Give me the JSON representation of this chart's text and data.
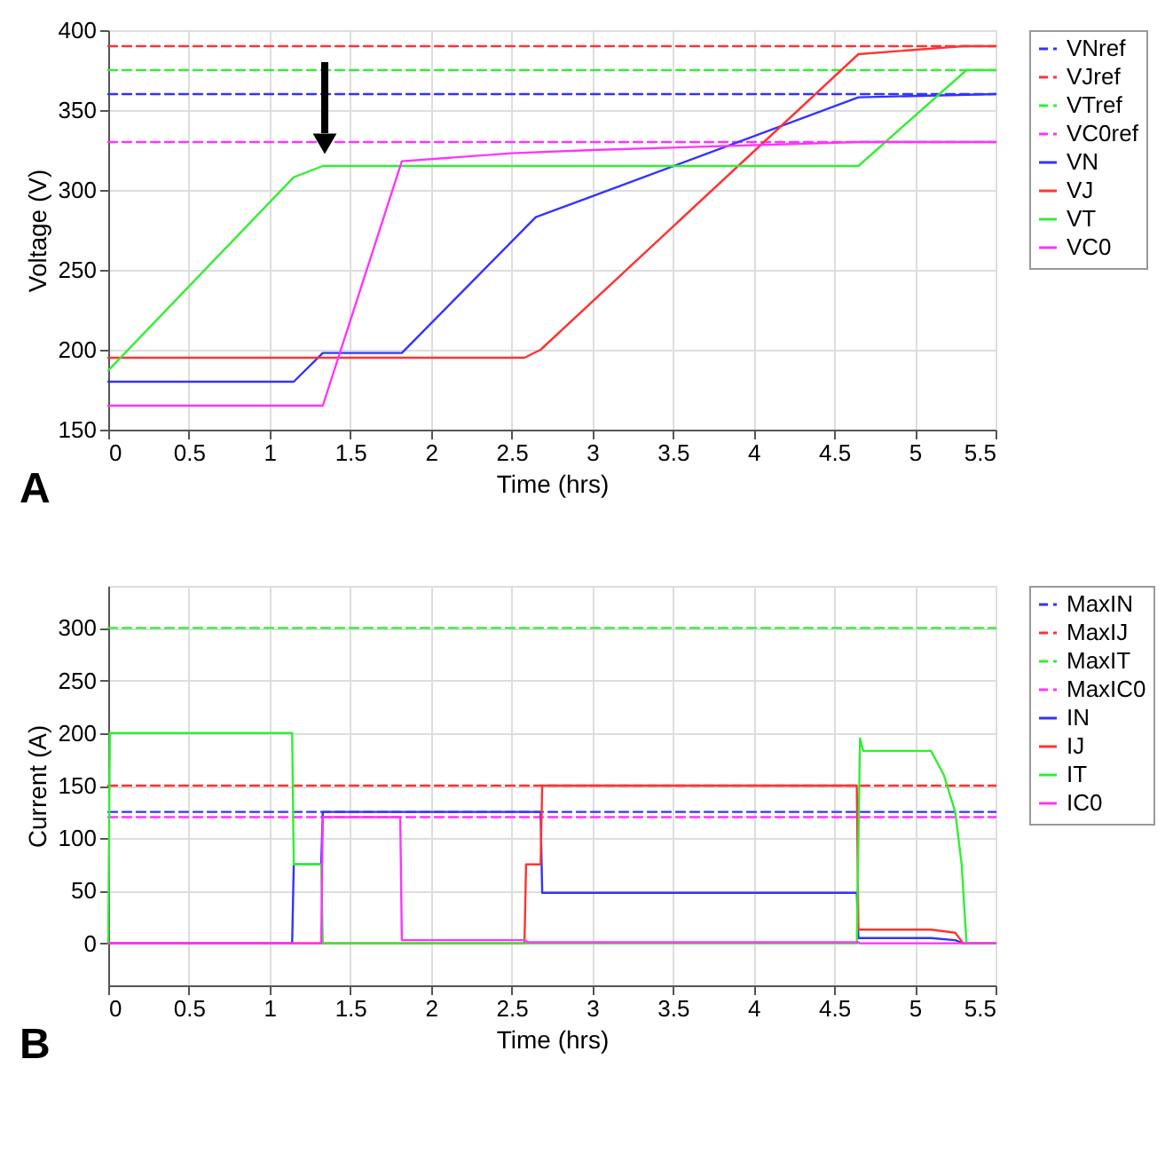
{
  "chart_data": [
    {
      "type": "line",
      "xlabel": "Time (hrs)",
      "ylabel": "Voltage (V)",
      "xlim": [
        0,
        5.5
      ],
      "xticks": [
        0,
        0.5,
        1,
        1.5,
        2,
        2.5,
        3,
        3.5,
        4,
        4.5,
        5,
        5.5
      ],
      "ylim": [
        150,
        400
      ],
      "yticks": [
        150,
        200,
        250,
        300,
        350,
        400
      ],
      "grid": true,
      "legend": "right",
      "annotations": [
        "A"
      ],
      "series": [
        {
          "name": "VNref",
          "color": "#3333ff",
          "line_style": "dashed",
          "x": [
            0,
            5.5
          ],
          "values": [
            360,
            360
          ]
        },
        {
          "name": "VJref",
          "color": "#ff3333",
          "line_style": "dashed",
          "x": [
            0,
            5.5
          ],
          "values": [
            390,
            390
          ]
        },
        {
          "name": "VTref",
          "color": "#33ee33",
          "line_style": "dashed",
          "x": [
            0,
            5.5
          ],
          "values": [
            375,
            375
          ]
        },
        {
          "name": "VC0ref",
          "color": "#ff33ff",
          "line_style": "dashed",
          "x": [
            0,
            5.5
          ],
          "values": [
            330,
            330
          ]
        },
        {
          "name": "VN",
          "color": "#3333ff",
          "line_style": "solid",
          "x": [
            0,
            1.15,
            1.33,
            1.82,
            2.65,
            3,
            4.65,
            5.5
          ],
          "values": [
            180,
            180,
            198,
            198,
            283,
            296,
            358,
            360
          ]
        },
        {
          "name": "VJ",
          "color": "#ff3333",
          "line_style": "solid",
          "x": [
            0,
            2.58,
            2.68,
            4.65,
            5.3,
            5.5
          ],
          "values": [
            195,
            195,
            200,
            385,
            390,
            390
          ]
        },
        {
          "name": "VT",
          "color": "#33ee33",
          "line_style": "solid",
          "x": [
            0,
            1.15,
            1.33,
            4.65,
            5.32,
            5.5
          ],
          "values": [
            187,
            308,
            315,
            315,
            375,
            375
          ]
        },
        {
          "name": "VC0",
          "color": "#ff33ff",
          "line_style": "solid",
          "x": [
            0,
            1.33,
            1.82,
            2.5,
            3,
            4.65,
            5.5
          ],
          "values": [
            165,
            165,
            318,
            323,
            325,
            330,
            330
          ]
        }
      ]
    },
    {
      "type": "line",
      "xlabel": "Time (hrs)",
      "ylabel": "Current (A)",
      "xlim": [
        0,
        5.5
      ],
      "xticks": [
        0,
        0.5,
        1,
        1.5,
        2,
        2.5,
        3,
        3.5,
        4,
        4.5,
        5,
        5.5
      ],
      "ylim": [
        -40,
        340
      ],
      "yticks": [
        0,
        50,
        100,
        150,
        200,
        250,
        300
      ],
      "grid": true,
      "legend": "right",
      "annotations": [
        "B"
      ],
      "series": [
        {
          "name": "MaxIN",
          "color": "#3333ff",
          "line_style": "dashed",
          "x": [
            0,
            5.5
          ],
          "values": [
            125,
            125
          ]
        },
        {
          "name": "MaxIJ",
          "color": "#ff3333",
          "line_style": "dashed",
          "x": [
            0,
            5.5
          ],
          "values": [
            150,
            150
          ]
        },
        {
          "name": "MaxIT",
          "color": "#33ee33",
          "line_style": "dashed",
          "x": [
            0,
            5.5
          ],
          "values": [
            300,
            300
          ]
        },
        {
          "name": "MaxIC0",
          "color": "#ff33ff",
          "line_style": "dashed",
          "x": [
            0,
            5.5
          ],
          "values": [
            120,
            120
          ]
        },
        {
          "name": "IN",
          "color": "#3333ff",
          "line_style": "solid",
          "x": [
            0,
            1.14,
            1.15,
            1.32,
            1.33,
            2.68,
            2.69,
            4.64,
            4.65,
            5.1,
            5.25,
            5.3,
            5.5
          ],
          "values": [
            0,
            0,
            75,
            75,
            125,
            125,
            48,
            48,
            5,
            5,
            3,
            0,
            0
          ]
        },
        {
          "name": "IJ",
          "color": "#ff3333",
          "line_style": "solid",
          "x": [
            0,
            2.58,
            2.59,
            2.68,
            2.69,
            4.64,
            4.65,
            5.1,
            5.25,
            5.3,
            5.5
          ],
          "values": [
            0,
            0,
            75,
            75,
            150,
            150,
            13,
            13,
            10,
            0,
            0
          ]
        },
        {
          "name": "IT",
          "color": "#33ee33",
          "line_style": "solid",
          "x": [
            0,
            0.01,
            1.14,
            1.15,
            1.32,
            1.33,
            4.64,
            4.66,
            4.68,
            5.1,
            5.18,
            5.25,
            5.29,
            5.32,
            5.5
          ],
          "values": [
            0,
            200,
            200,
            75,
            75,
            0,
            0,
            195,
            183,
            183,
            160,
            125,
            75,
            0,
            0
          ]
        },
        {
          "name": "IC0",
          "color": "#ff33ff",
          "line_style": "solid",
          "x": [
            0,
            1.32,
            1.33,
            1.81,
            1.82,
            2.58,
            2.6,
            4.65,
            4.66,
            5.5
          ],
          "values": [
            0,
            0,
            120,
            120,
            3,
            3,
            1,
            1,
            0,
            0
          ]
        }
      ]
    }
  ]
}
